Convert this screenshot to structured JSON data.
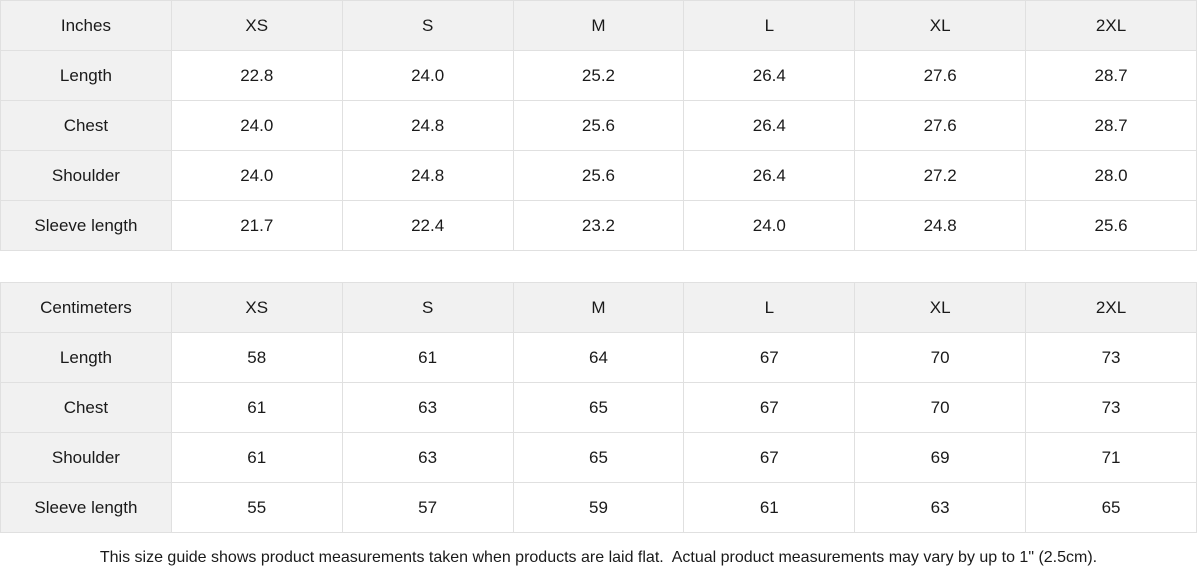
{
  "colors": {
    "header_bg": "#f1f1f1",
    "label_column_bg": "#f1f1f1",
    "border": "#e0e0e0",
    "text": "#1a1a1a",
    "background": "#ffffff"
  },
  "tables": [
    {
      "unit_label": "Inches",
      "columns": [
        "XS",
        "S",
        "M",
        "L",
        "XL",
        "2XL"
      ],
      "rows": [
        {
          "label": "Length",
          "values": [
            "22.8",
            "24.0",
            "25.2",
            "26.4",
            "27.6",
            "28.7"
          ]
        },
        {
          "label": "Chest",
          "values": [
            "24.0",
            "24.8",
            "25.6",
            "26.4",
            "27.6",
            "28.7"
          ]
        },
        {
          "label": "Shoulder",
          "values": [
            "24.0",
            "24.8",
            "25.6",
            "26.4",
            "27.2",
            "28.0"
          ]
        },
        {
          "label": "Sleeve length",
          "values": [
            "21.7",
            "22.4",
            "23.2",
            "24.0",
            "24.8",
            "25.6"
          ]
        }
      ]
    },
    {
      "unit_label": "Centimeters",
      "columns": [
        "XS",
        "S",
        "M",
        "L",
        "XL",
        "2XL"
      ],
      "rows": [
        {
          "label": "Length",
          "values": [
            "58",
            "61",
            "64",
            "67",
            "70",
            "73"
          ]
        },
        {
          "label": "Chest",
          "values": [
            "61",
            "63",
            "65",
            "67",
            "70",
            "73"
          ]
        },
        {
          "label": "Shoulder",
          "values": [
            "61",
            "63",
            "65",
            "67",
            "69",
            "71"
          ]
        },
        {
          "label": "Sleeve length",
          "values": [
            "55",
            "57",
            "59",
            "61",
            "63",
            "65"
          ]
        }
      ]
    }
  ],
  "footer": {
    "note": "This size guide shows product measurements taken when products are laid flat.  Actual product measurements may vary by up to 1\" (2.5cm)."
  }
}
